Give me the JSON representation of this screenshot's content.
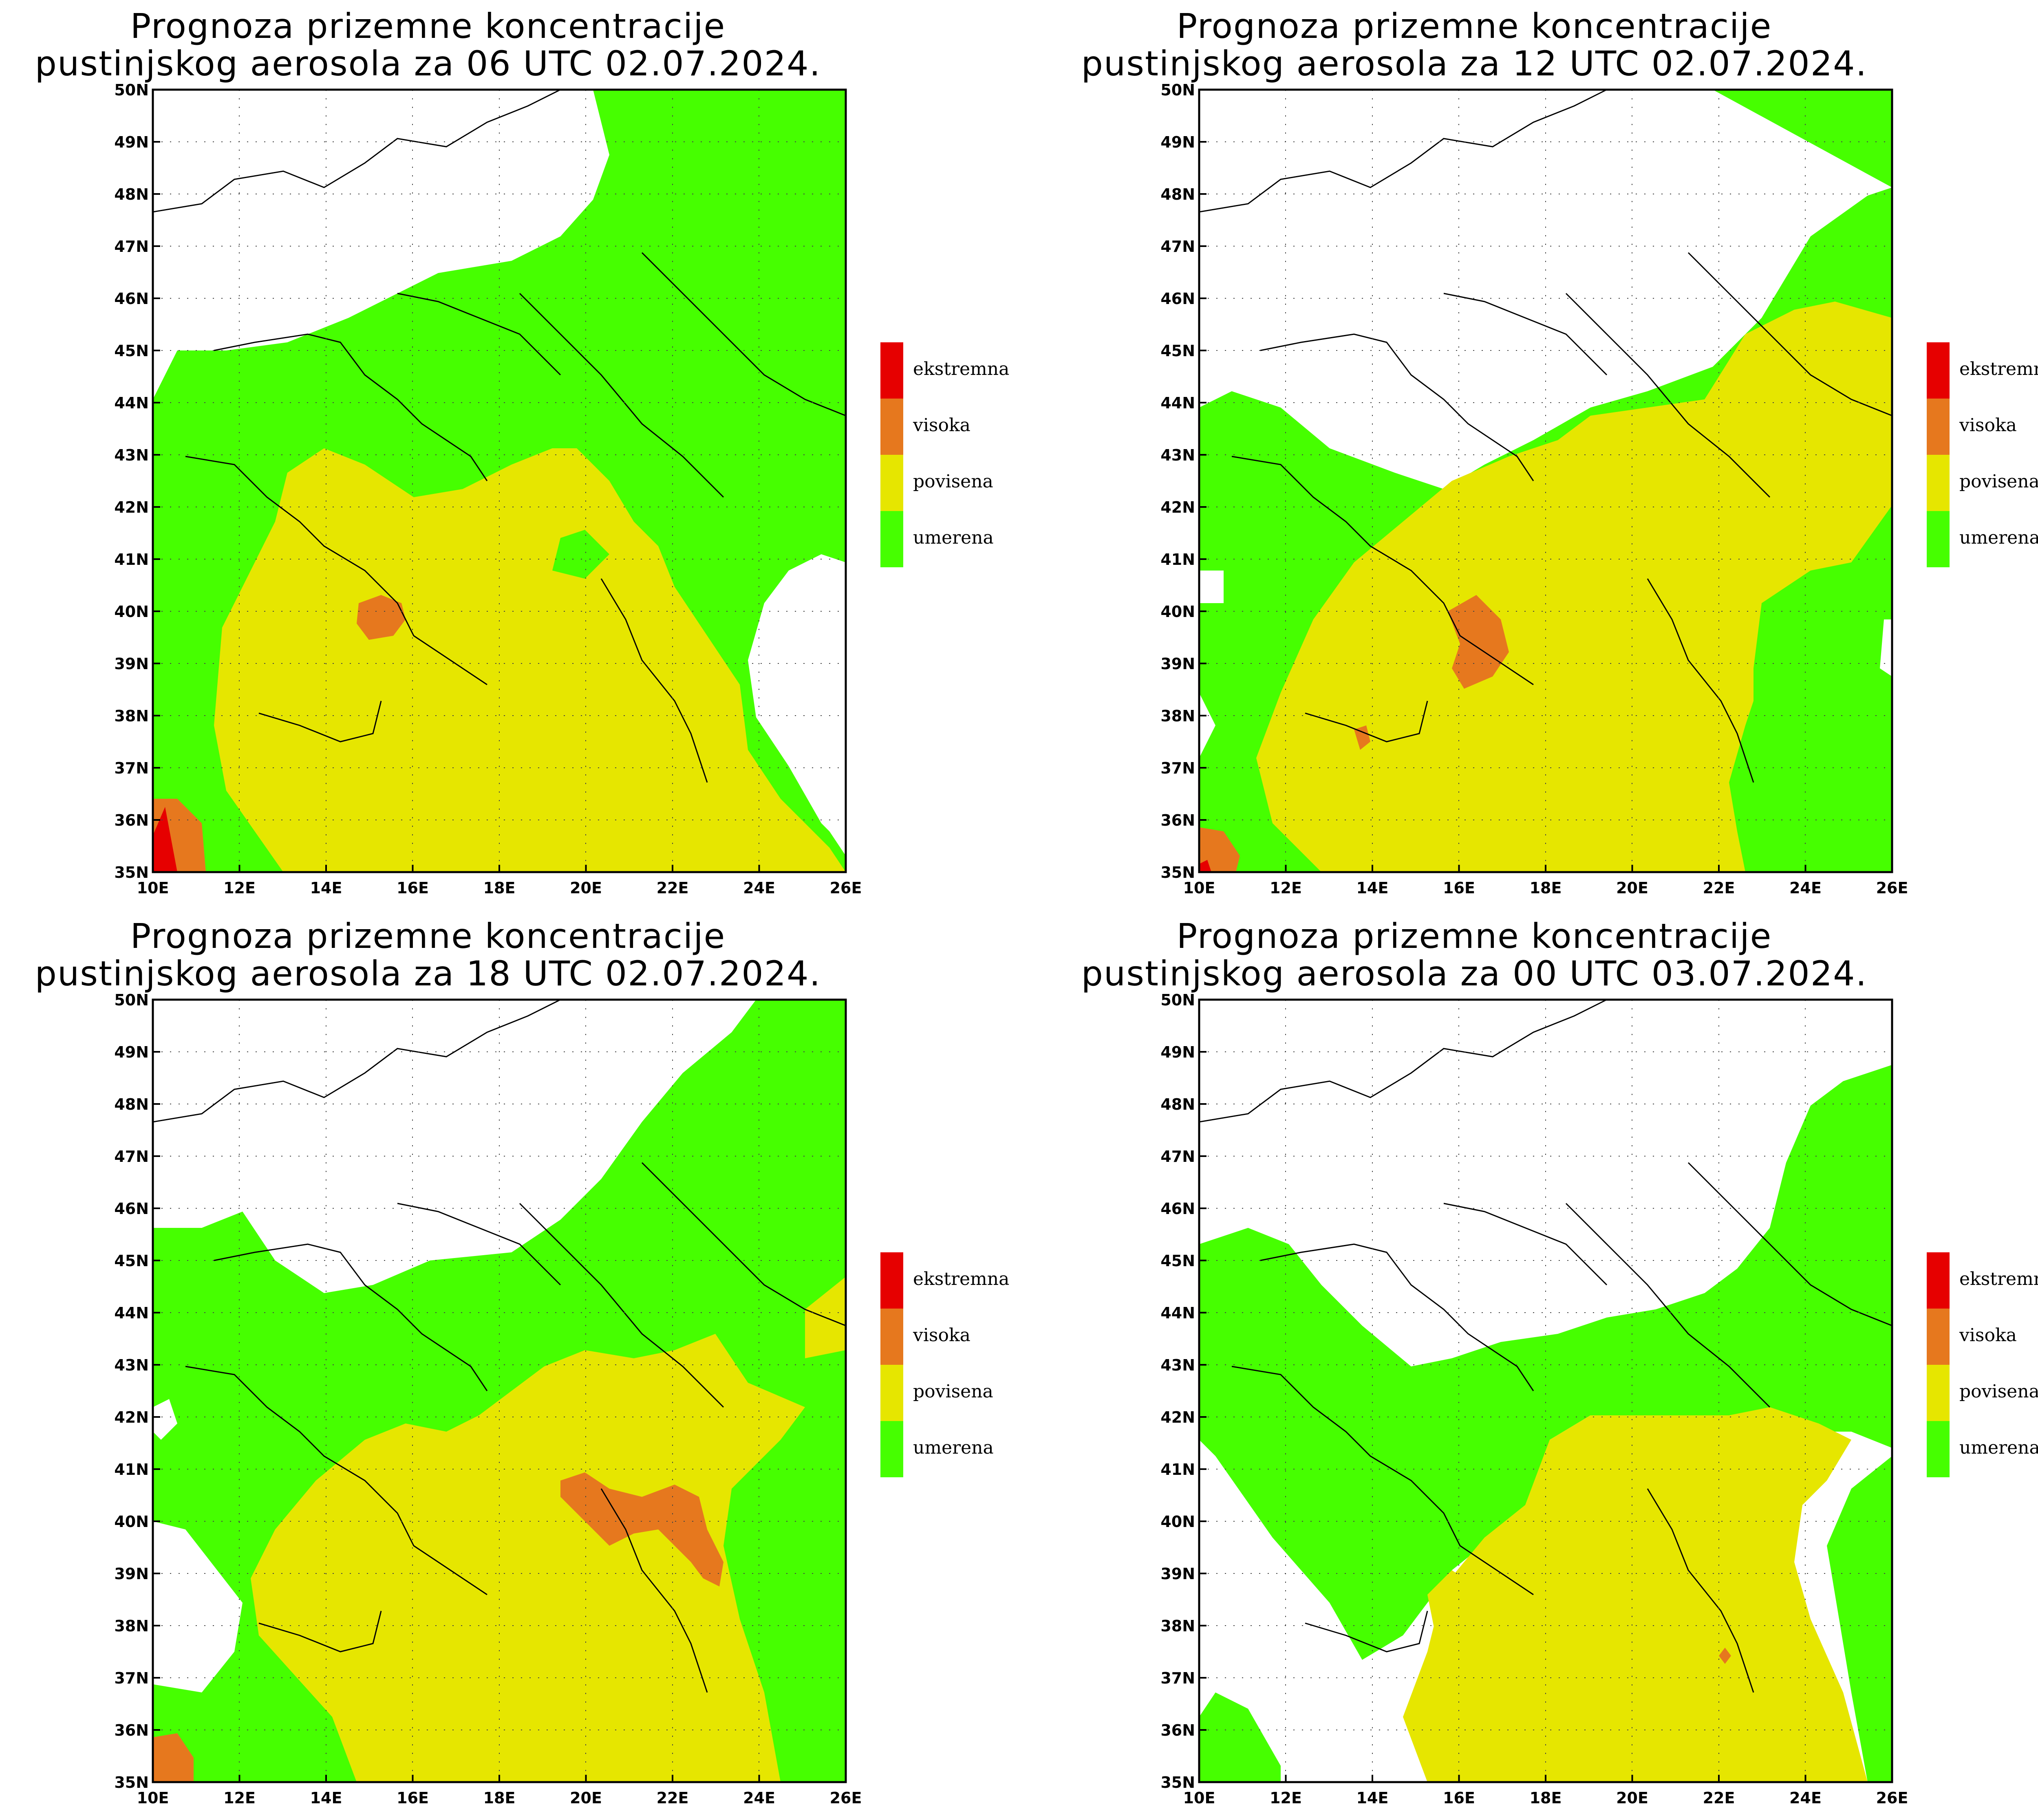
{
  "legend": {
    "items": [
      {
        "label": "ekstremna",
        "color": "#e60000"
      },
      {
        "label": "visoka",
        "color": "#e6781e"
      },
      {
        "label": "povisena",
        "color": "#e6e600"
      },
      {
        "label": "umerena",
        "color": "#46ff00"
      }
    ]
  },
  "axes": {
    "lat_labels": [
      "35N",
      "36N",
      "37N",
      "38N",
      "39N",
      "40N",
      "41N",
      "42N",
      "43N",
      "44N",
      "45N",
      "46N",
      "47N",
      "48N",
      "49N",
      "50N"
    ],
    "lon_labels": [
      "10E",
      "12E",
      "14E",
      "16E",
      "18E",
      "20E",
      "22E",
      "24E",
      "26E"
    ]
  },
  "panels": [
    {
      "title_line1": "Prognoza prizemne koncentracije",
      "title_line2": "pustinjskog aerosola za 06 UTC 02.07.2024."
    },
    {
      "title_line1": "Prognoza prizemne koncentracije",
      "title_line2": "pustinjskog aerosola za 12 UTC 02.07.2024."
    },
    {
      "title_line1": "Prognoza prizemne koncentracije",
      "title_line2": "pustinjskog aerosola za 18 UTC 02.07.2024."
    },
    {
      "title_line1": "Prognoza prizemne koncentracije",
      "title_line2": "pustinjskog aerosola za 00 UTC 03.07.2024."
    }
  ]
}
